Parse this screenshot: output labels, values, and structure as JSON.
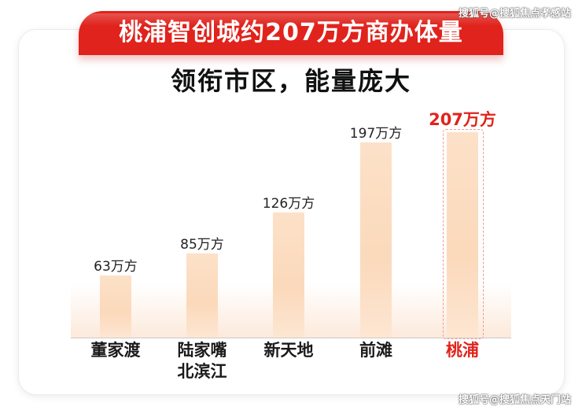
{
  "watermark_top": "搜狐号@搜狐焦点孝感站",
  "watermark_bottom": "搜狐号@搜狐焦点天门站",
  "chart_data": {
    "type": "bar",
    "title": "桃浦智创城约207万方商办体量",
    "subtitle": "领衔市区，能量庞大",
    "categories": [
      [
        "董家渡"
      ],
      [
        "陆家嘴",
        "北滨江"
      ],
      [
        "新天地"
      ],
      [
        "前滩"
      ],
      [
        "桃浦"
      ]
    ],
    "values": [
      63,
      85,
      126,
      197,
      207
    ],
    "value_labels": [
      "63万方",
      "85万方",
      "126万方",
      "197万方",
      "207万方"
    ],
    "unit": "万方",
    "highlight_index": 4,
    "colors": {
      "bar": "#fbd9bb",
      "highlight": "#e0231c"
    },
    "ylim": [
      0,
      207
    ],
    "grid": false,
    "legend": "none"
  }
}
